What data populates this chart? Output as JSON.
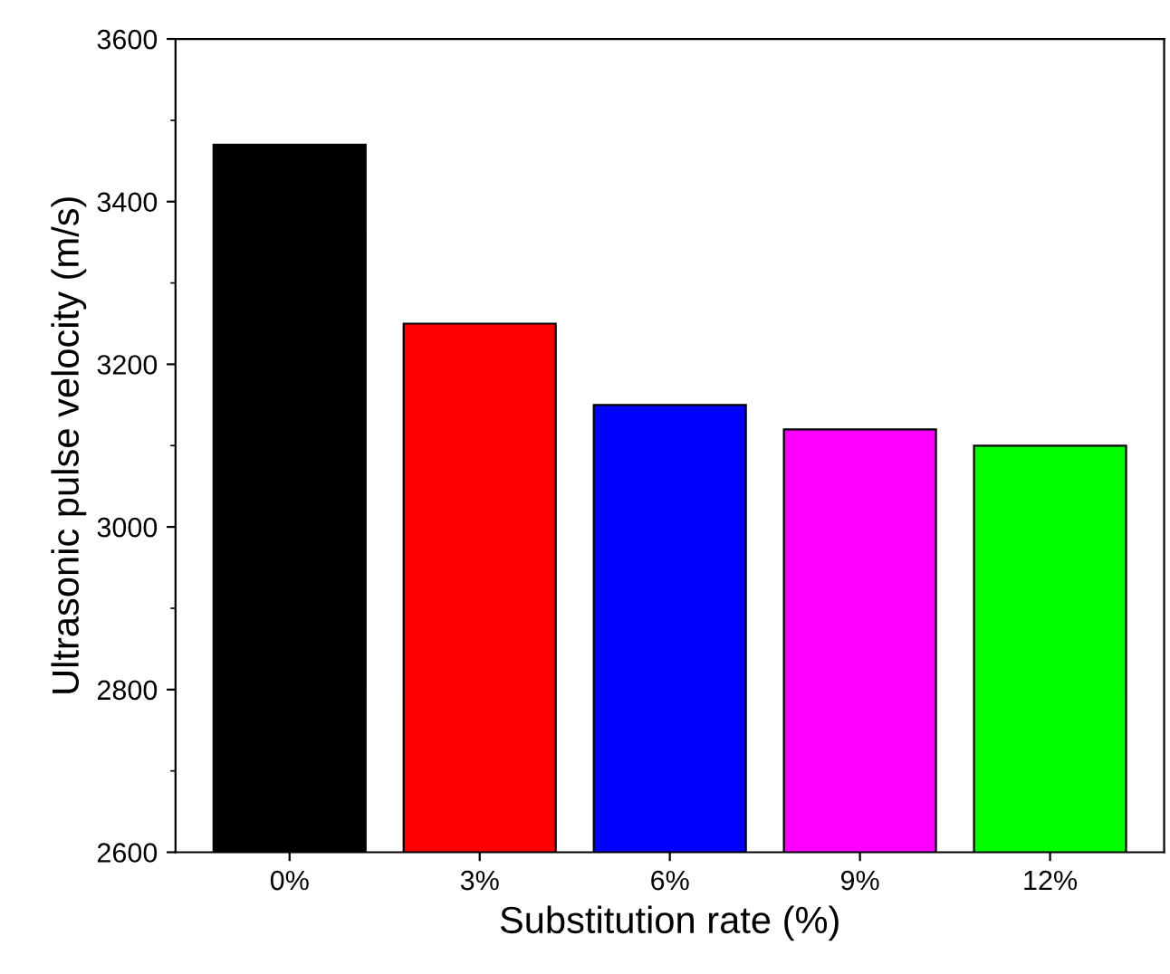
{
  "chart_data": {
    "type": "bar",
    "xlabel": "Substitution rate (%)",
    "ylabel": "Ultrasonic pulse velocity (m/s)",
    "categories": [
      "0%",
      "3%",
      "6%",
      "9%",
      "12%"
    ],
    "values": [
      3470,
      3250,
      3150,
      3120,
      3100
    ],
    "colors": [
      "#000000",
      "#ff0000",
      "#0000ff",
      "#ff00ff",
      "#00ff00"
    ],
    "ylim": [
      2600,
      3600
    ],
    "yticks": [
      2600,
      2800,
      3000,
      3200,
      3400,
      3600
    ],
    "grid": false
  }
}
